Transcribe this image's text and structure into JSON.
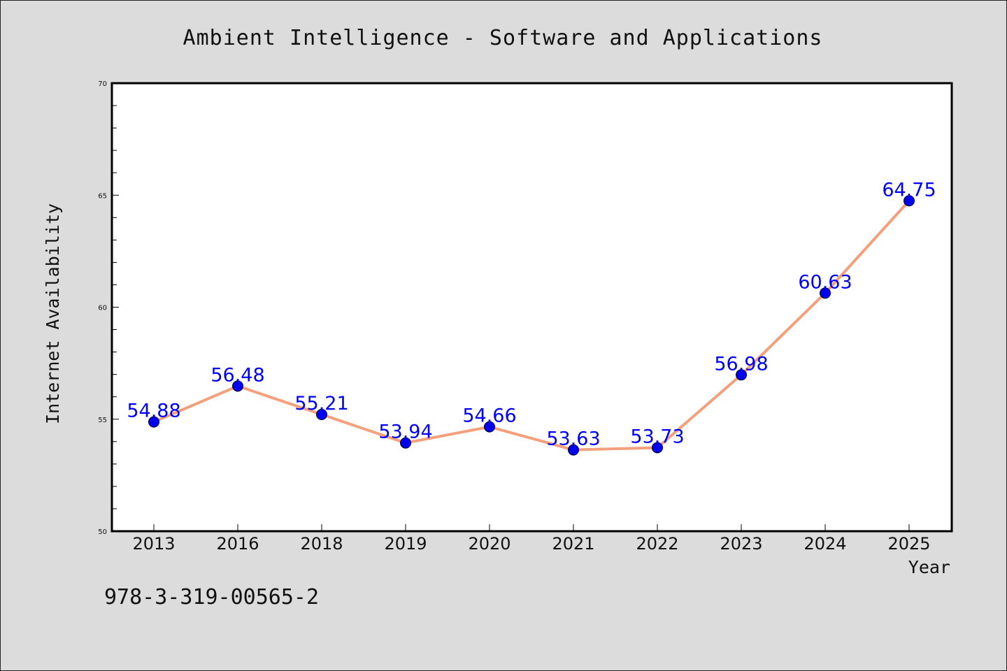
{
  "chart_data": {
    "type": "line",
    "title": "Ambient Intelligence - Software and Applications",
    "xlabel": "Year",
    "ylabel": "Internet Availability",
    "categories": [
      "2013",
      "2016",
      "2018",
      "2019",
      "2020",
      "2021",
      "2022",
      "2023",
      "2024",
      "2025"
    ],
    "series": [
      {
        "values": [
          54.88,
          56.48,
          55.21,
          53.94,
          54.66,
          53.63,
          53.73,
          56.98,
          60.63,
          64.75
        ],
        "labels": [
          "54.88",
          "56.48",
          "55.21",
          "53.94",
          "54.66",
          "53.63",
          "53.73",
          "56.98",
          "60.63",
          "64.75"
        ],
        "line_color": "#f4a07c",
        "marker_color": "#0000ee"
      }
    ],
    "ylim": [
      50,
      70
    ],
    "yticks": [
      "50",
      "55",
      "60",
      "65",
      "70"
    ],
    "grid": false,
    "legend": "none"
  },
  "footer": {
    "isbn": "978-3-319-00565-2"
  },
  "colors": {
    "background": "#dcdcdc",
    "plot_background": "#ffffff",
    "data_label": "#0000ff"
  }
}
